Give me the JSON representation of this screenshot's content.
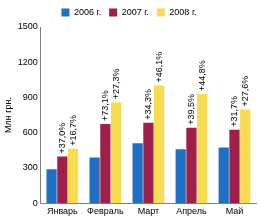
{
  "chart_data": {
    "type": "bar",
    "y_label": "Млн грн.",
    "categories": [
      "Январь",
      "Февраль",
      "Март",
      "Апрель",
      "Май"
    ],
    "series": [
      {
        "name": "2006 г.",
        "color": "#1f6fc4",
        "values": [
          290,
          390,
          510,
          460,
          475
        ]
      },
      {
        "name": "2007 г.",
        "color": "#9e1f4a",
        "values": [
          397,
          675,
          685,
          642,
          625
        ],
        "annotations": [
          "+37,0%",
          "+73,1%",
          "+34,3%",
          "+39,5%",
          "+31,7%"
        ]
      },
      {
        "name": "2008 г.",
        "color": "#f7dc52",
        "values": [
          463,
          860,
          1001,
          929,
          798
        ],
        "annotations": [
          "+16,7%",
          "+27,3%",
          "+46,1%",
          "+44,8%",
          "+27,6%"
        ]
      }
    ],
    "ylim": [
      0,
      1500
    ],
    "yticks": [
      0,
      300,
      600,
      900,
      1200,
      1500
    ],
    "grid": false,
    "legend": "top"
  }
}
